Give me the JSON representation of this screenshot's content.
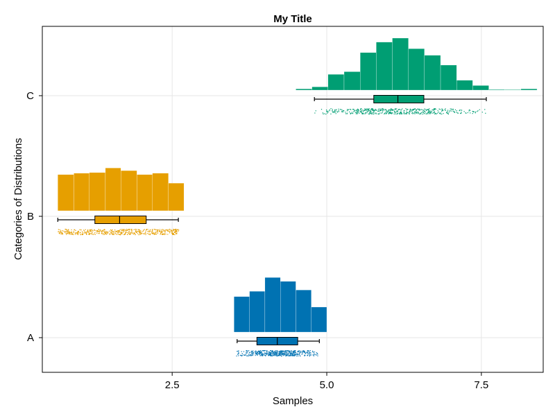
{
  "chart_data": {
    "type": "raincloud",
    "title": "My Title",
    "xlabel": "Samples",
    "ylabel": "Categories of Distributions",
    "xlim": [
      0.4,
      8.5
    ],
    "x_ticks": [
      2.5,
      5.0,
      7.5
    ],
    "x_tick_labels": [
      "2.5",
      "5.0",
      "7.5"
    ],
    "categories": [
      "A",
      "B",
      "C"
    ],
    "grid": true,
    "series": [
      {
        "name": "A",
        "color": "#0072b2",
        "histogram": {
          "edges": [
            3.5,
            3.75,
            4.0,
            4.25,
            4.5,
            4.75,
            5.0
          ],
          "heights": [
            0.54,
            0.62,
            0.83,
            0.77,
            0.64,
            0.38
          ]
        },
        "box": {
          "whisker_low": 3.55,
          "q1": 3.87,
          "median": 4.2,
          "q3": 4.53,
          "whisker_high": 4.88
        },
        "points": [
          [
            3.53,
            4.9
          ],
          [
            4.2,
            4.9
          ]
        ]
      },
      {
        "name": "B",
        "color": "#e69f00",
        "histogram": {
          "edges": [
            0.65,
            0.91,
            1.16,
            1.42,
            1.67,
            1.93,
            2.18,
            2.44,
            2.69
          ],
          "heights": [
            0.55,
            0.57,
            0.58,
            0.65,
            0.61,
            0.55,
            0.57,
            0.42
          ]
        },
        "box": {
          "whisker_low": 0.65,
          "q1": 1.25,
          "median": 1.65,
          "q3": 2.08,
          "whisker_high": 2.6
        },
        "points": [
          [
            0.65,
            2.6
          ],
          [
            1.6,
            2.6
          ]
        ]
      },
      {
        "name": "C",
        "color": "#009e73",
        "histogram": {
          "edges": [
            4.5,
            4.76,
            5.02,
            5.28,
            5.54,
            5.8,
            6.06,
            6.32,
            6.58,
            6.84,
            7.1,
            7.36,
            7.62,
            7.88,
            8.14,
            8.4
          ],
          "heights": [
            0.02,
            0.05,
            0.24,
            0.28,
            0.57,
            0.73,
            0.79,
            0.63,
            0.53,
            0.38,
            0.15,
            0.07,
            0.01,
            0.0,
            0.02
          ]
        },
        "box": {
          "whisker_low": 4.8,
          "q1": 5.76,
          "median": 6.15,
          "q3": 6.57,
          "whisker_high": 7.58
        },
        "points": [
          [
            4.8,
            7.6
          ],
          [
            6.2,
            7.6
          ]
        ]
      }
    ]
  }
}
